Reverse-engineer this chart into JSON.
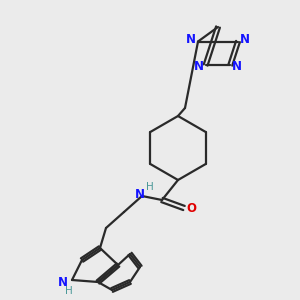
{
  "background_color": "#ebebeb",
  "bond_color": "#2a2a2a",
  "nitrogen_color": "#1414ff",
  "oxygen_color": "#e00000",
  "nh_color": "#4a9898",
  "figsize": [
    3.0,
    3.0
  ],
  "dpi": 100,
  "xlim": [
    0,
    300
  ],
  "ylim": [
    0,
    300
  ]
}
